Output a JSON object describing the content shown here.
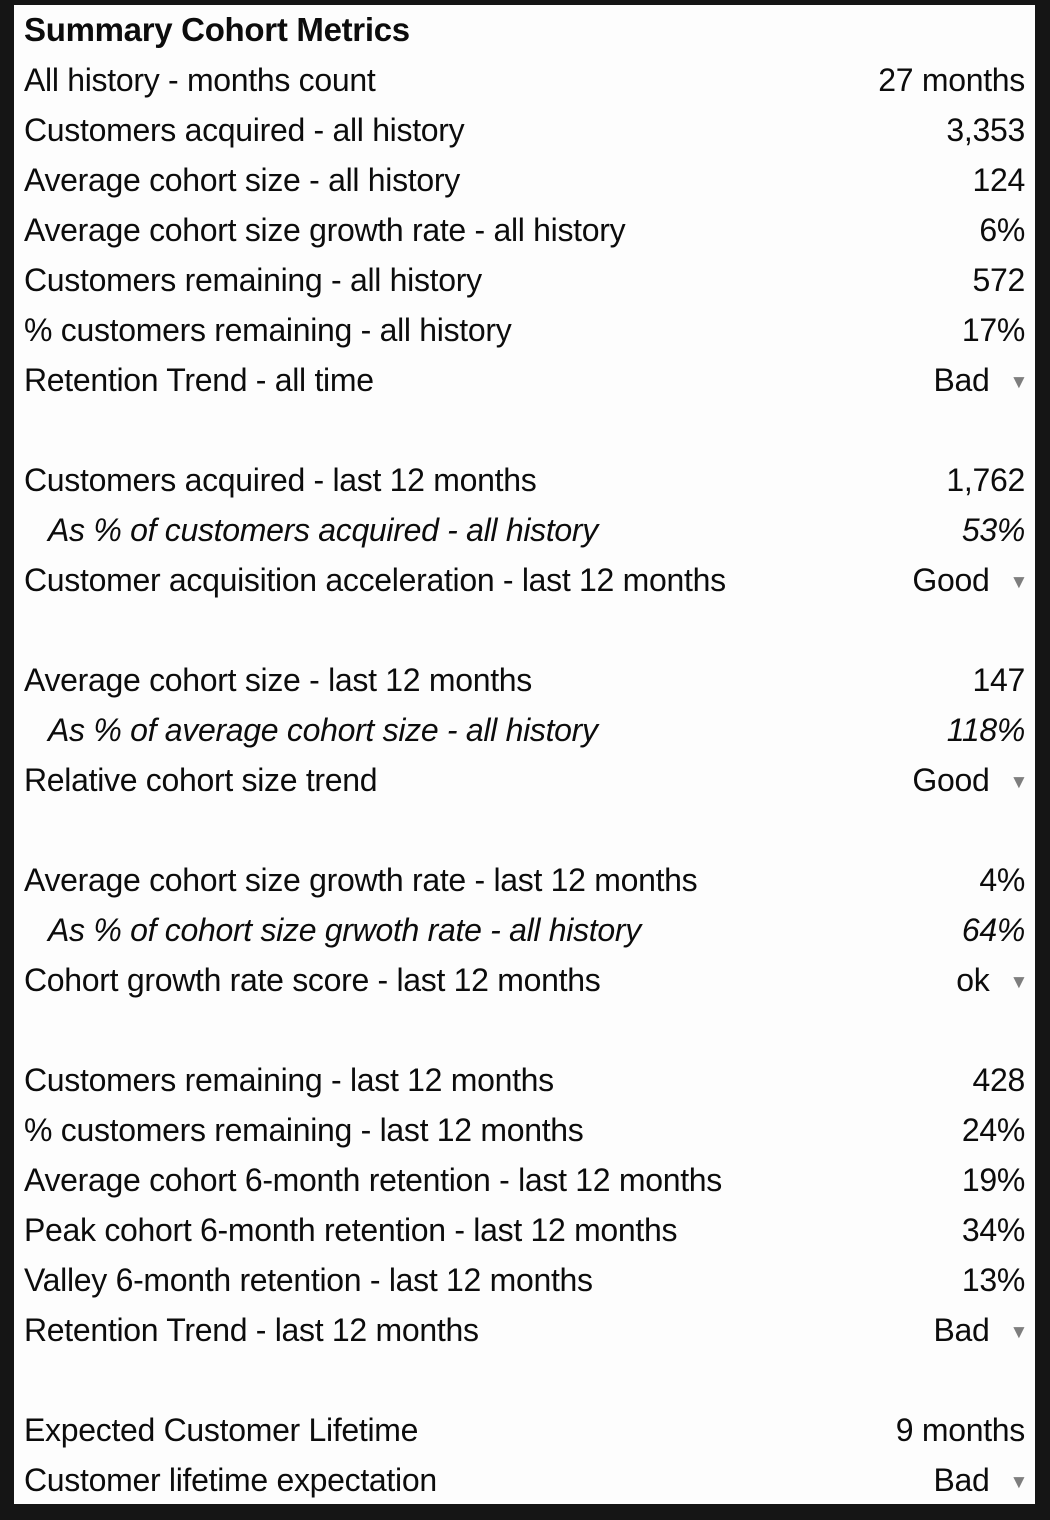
{
  "panel": {
    "title": "Summary Cohort Metrics"
  },
  "colors": {
    "border": "#151515",
    "text": "#0c0c0c",
    "background": "#fdfdfd",
    "dropdown_arrow": "#7e7e7e"
  },
  "icons": {
    "dropdown_arrow": "▼"
  },
  "rows": [
    {
      "style": "title",
      "label": "Summary Cohort Metrics"
    },
    {
      "style": "normal",
      "label": "All history - months count",
      "value": "27 months"
    },
    {
      "style": "normal",
      "label": "Customers acquired - all history",
      "value": "3,353"
    },
    {
      "style": "normal",
      "label": "Average cohort size - all history",
      "value": "124"
    },
    {
      "style": "normal",
      "label": "Average cohort size growth rate - all history",
      "value": "6%"
    },
    {
      "style": "normal",
      "label": "Customers remaining - all history",
      "value": "572"
    },
    {
      "style": "normal",
      "label": "% customers remaining - all history",
      "value": "17%"
    },
    {
      "style": "dropdown",
      "label": "Retention Trend - all time",
      "value": "Bad"
    },
    {
      "style": "blank"
    },
    {
      "style": "normal",
      "label": "Customers acquired - last 12 months",
      "value": "1,762"
    },
    {
      "style": "sub",
      "label": "As % of customers acquired - all history",
      "value": "53%"
    },
    {
      "style": "dropdown",
      "label": "Customer acquisition acceleration - last 12 months",
      "value": "Good"
    },
    {
      "style": "blank"
    },
    {
      "style": "normal",
      "label": "Average cohort size - last 12 months",
      "value": "147"
    },
    {
      "style": "sub",
      "label": "As % of average cohort size - all history",
      "value": "118%"
    },
    {
      "style": "dropdown",
      "label": "Relative cohort size trend",
      "value": "Good"
    },
    {
      "style": "blank"
    },
    {
      "style": "normal",
      "label": "Average cohort size growth rate - last 12 months",
      "value": "4%"
    },
    {
      "style": "sub",
      "label": "As % of cohort size grwoth rate - all history",
      "value": "64%"
    },
    {
      "style": "dropdown",
      "label": "Cohort growth rate score - last 12 months",
      "value": "ok"
    },
    {
      "style": "blank"
    },
    {
      "style": "normal",
      "label": "Customers remaining - last 12 months",
      "value": "428"
    },
    {
      "style": "normal",
      "label": "% customers remaining - last 12 months",
      "value": "24%"
    },
    {
      "style": "normal",
      "label": "Average cohort 6-month retention - last 12 months",
      "value": "19%"
    },
    {
      "style": "normal",
      "label": "Peak cohort 6-month retention - last 12 months",
      "value": "34%"
    },
    {
      "style": "normal",
      "label": "Valley 6-month retention - last 12 months",
      "value": "13%"
    },
    {
      "style": "dropdown",
      "label": "Retention Trend - last 12 months",
      "value": "Bad"
    },
    {
      "style": "blank"
    },
    {
      "style": "normal",
      "label": "Expected Customer Lifetime",
      "value": "9 months"
    },
    {
      "style": "dropdown",
      "label": "Customer lifetime expectation",
      "value": "Bad"
    }
  ]
}
